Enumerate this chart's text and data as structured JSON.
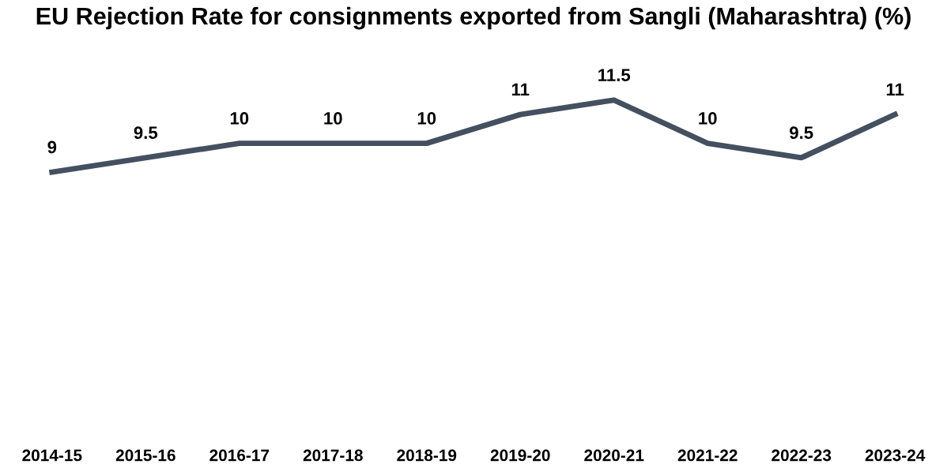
{
  "chart_data": {
    "type": "line",
    "title": "EU Rejection Rate for consignments exported from Sangli (Maharashtra) (%)",
    "categories": [
      "2014-15",
      "2015-16",
      "2016-17",
      "2017-18",
      "2018-19",
      "2019-20",
      "2020-21",
      "2021-22",
      "2022-23",
      "2023-24"
    ],
    "series": [
      {
        "color": "#44505f",
        "values": [
          9,
          9.5,
          10,
          10,
          10,
          11,
          11.5,
          10,
          9.5,
          11
        ]
      }
    ],
    "data_labels": true,
    "marker": "none",
    "line_style": "solid"
  }
}
